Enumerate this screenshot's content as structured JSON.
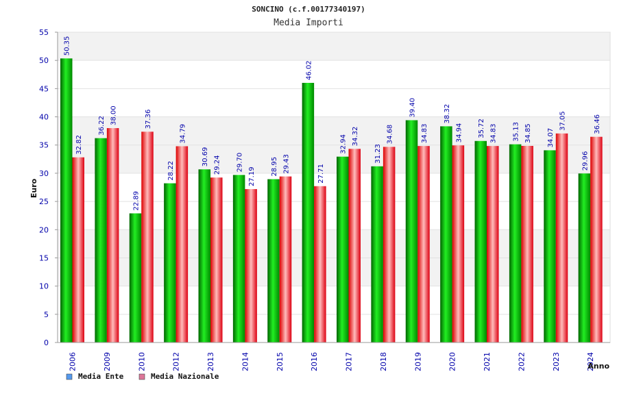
{
  "chart_data": {
    "type": "bar",
    "title": "SONCINO (c.f.00177340197)",
    "subtitle": "Media Importi",
    "ylabel": "Euro",
    "xlabel": "Anno",
    "ylim": [
      0,
      55
    ],
    "yticks": [
      0,
      5,
      10,
      15,
      20,
      25,
      30,
      35,
      40,
      45,
      50,
      55
    ],
    "grid": true,
    "legend_position": "bottom-left",
    "categories": [
      "2006",
      "2009",
      "2010",
      "2012",
      "2013",
      "2014",
      "2015",
      "2016",
      "2017",
      "2018",
      "2019",
      "2020",
      "2021",
      "2022",
      "2023",
      "2024"
    ],
    "series": [
      {
        "name": "Media Ente",
        "color": "#00aa00",
        "values": [
          50.35,
          36.22,
          22.89,
          28.22,
          30.69,
          29.7,
          28.95,
          46.02,
          32.94,
          31.23,
          39.4,
          38.32,
          35.72,
          35.13,
          34.07,
          29.96
        ],
        "labels": [
          "50.35",
          "36.22",
          "22.89",
          "28.22",
          "30.69",
          "29.70",
          "28.95",
          "46.02",
          "32.94",
          "31.23",
          "39.40",
          "38.32",
          "35.72",
          "35.13",
          "34.07",
          "29.96"
        ]
      },
      {
        "name": "Media Nazionale",
        "color": "#ee1122",
        "values": [
          32.82,
          38.0,
          37.36,
          34.79,
          29.24,
          27.19,
          29.43,
          27.71,
          34.32,
          34.68,
          34.83,
          34.94,
          34.83,
          34.85,
          37.05,
          36.46
        ],
        "labels": [
          "32.82",
          "38.00",
          "37.36",
          "34.79",
          "29.24",
          "27.19",
          "29.43",
          "27.71",
          "34.32",
          "34.68",
          "34.83",
          "34.94",
          "34.83",
          "34.85",
          "37.05",
          "36.46"
        ]
      }
    ],
    "legend": [
      {
        "label": "Media Ente",
        "color": "#5599ee"
      },
      {
        "label": "Media Nazionale",
        "color": "#dd7799"
      }
    ]
  }
}
